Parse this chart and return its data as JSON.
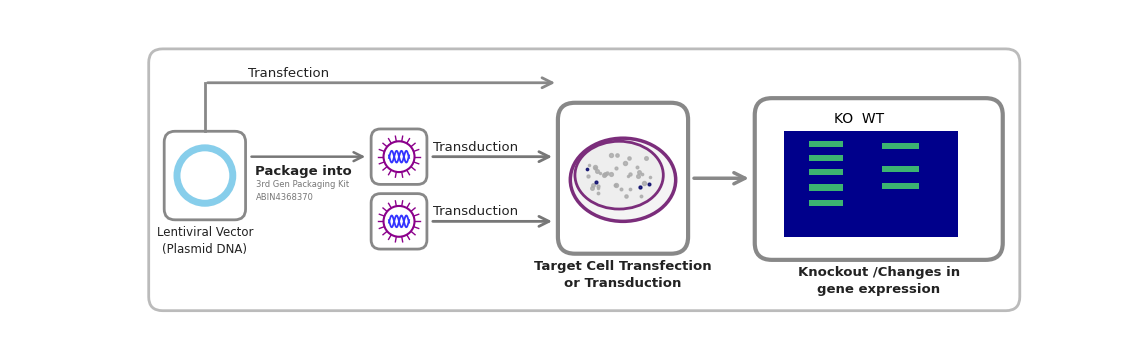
{
  "bg_color": "#ffffff",
  "border_color": "#bbbbbb",
  "box_border_color": "#888888",
  "arrow_color": "#888888",
  "text_dark": "#222222",
  "blue_dark": "#00008B",
  "green_band": "#3CB371",
  "purple_virus": "#8B008B",
  "blue_circle": "#87CEEB",
  "label_lentiviral": "Lentiviral Vector\n(Plasmid DNA)",
  "label_package": "Package into",
  "label_packaging_kit": "3rd Gen Packaging Kit\nABIN4368370",
  "label_transduction1": "Transduction",
  "label_transduction2": "Transduction",
  "label_transfection": "Transfection",
  "label_target": "Target Cell Transfection\nor Transduction",
  "label_knockout": "Knockout /Changes in\ngene expression",
  "label_ko_wt": "KO  WT"
}
